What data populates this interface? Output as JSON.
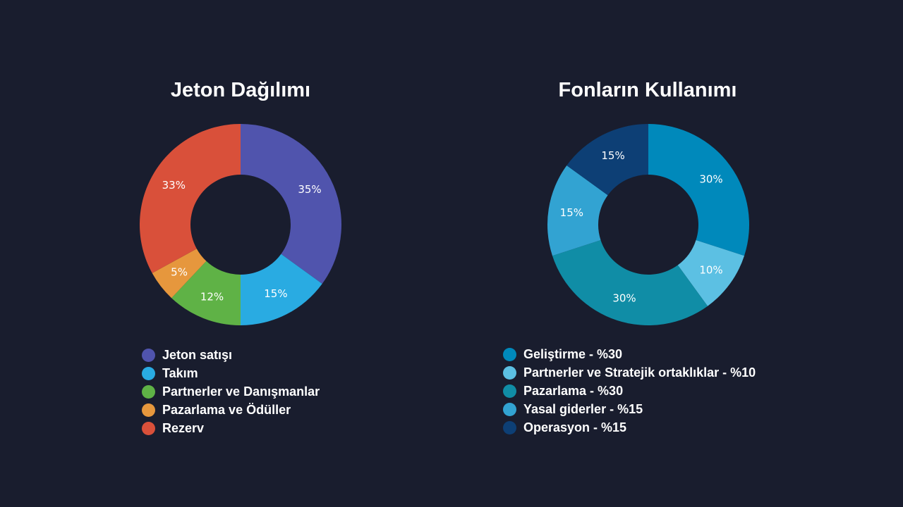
{
  "chart_data": [
    {
      "type": "pie",
      "title": "Jeton Dağılımı",
      "categories": [
        "Jeton satışı",
        "Takım",
        "Partnerler ve Danışmanlar",
        "Pazarlama ve Ödüller",
        "Rezerv"
      ],
      "values": [
        35,
        15,
        12,
        5,
        33
      ],
      "labels": [
        "35%",
        "15%",
        "12%",
        "5%",
        "33%"
      ],
      "colors": [
        "#5054ad",
        "#29abe2",
        "#5fb246",
        "#e6973d",
        "#d9503a"
      ],
      "legend": "bottom"
    },
    {
      "type": "pie",
      "title": "Fonların Kullanımı",
      "categories": [
        "Geliştirme - %30",
        "Partnerler ve Stratejik ortaklıklar - %10",
        "Pazarlama - %30",
        "Yasal giderler - %15",
        "Operasyon - %15"
      ],
      "values": [
        30,
        10,
        30,
        15,
        15
      ],
      "labels": [
        "30%",
        "10%",
        "30%",
        "15%",
        "15%"
      ],
      "colors": [
        "#0089bb",
        "#5cc0e3",
        "#108da6",
        "#32a3d2",
        "#0d3f75"
      ],
      "legend": "bottom"
    }
  ]
}
